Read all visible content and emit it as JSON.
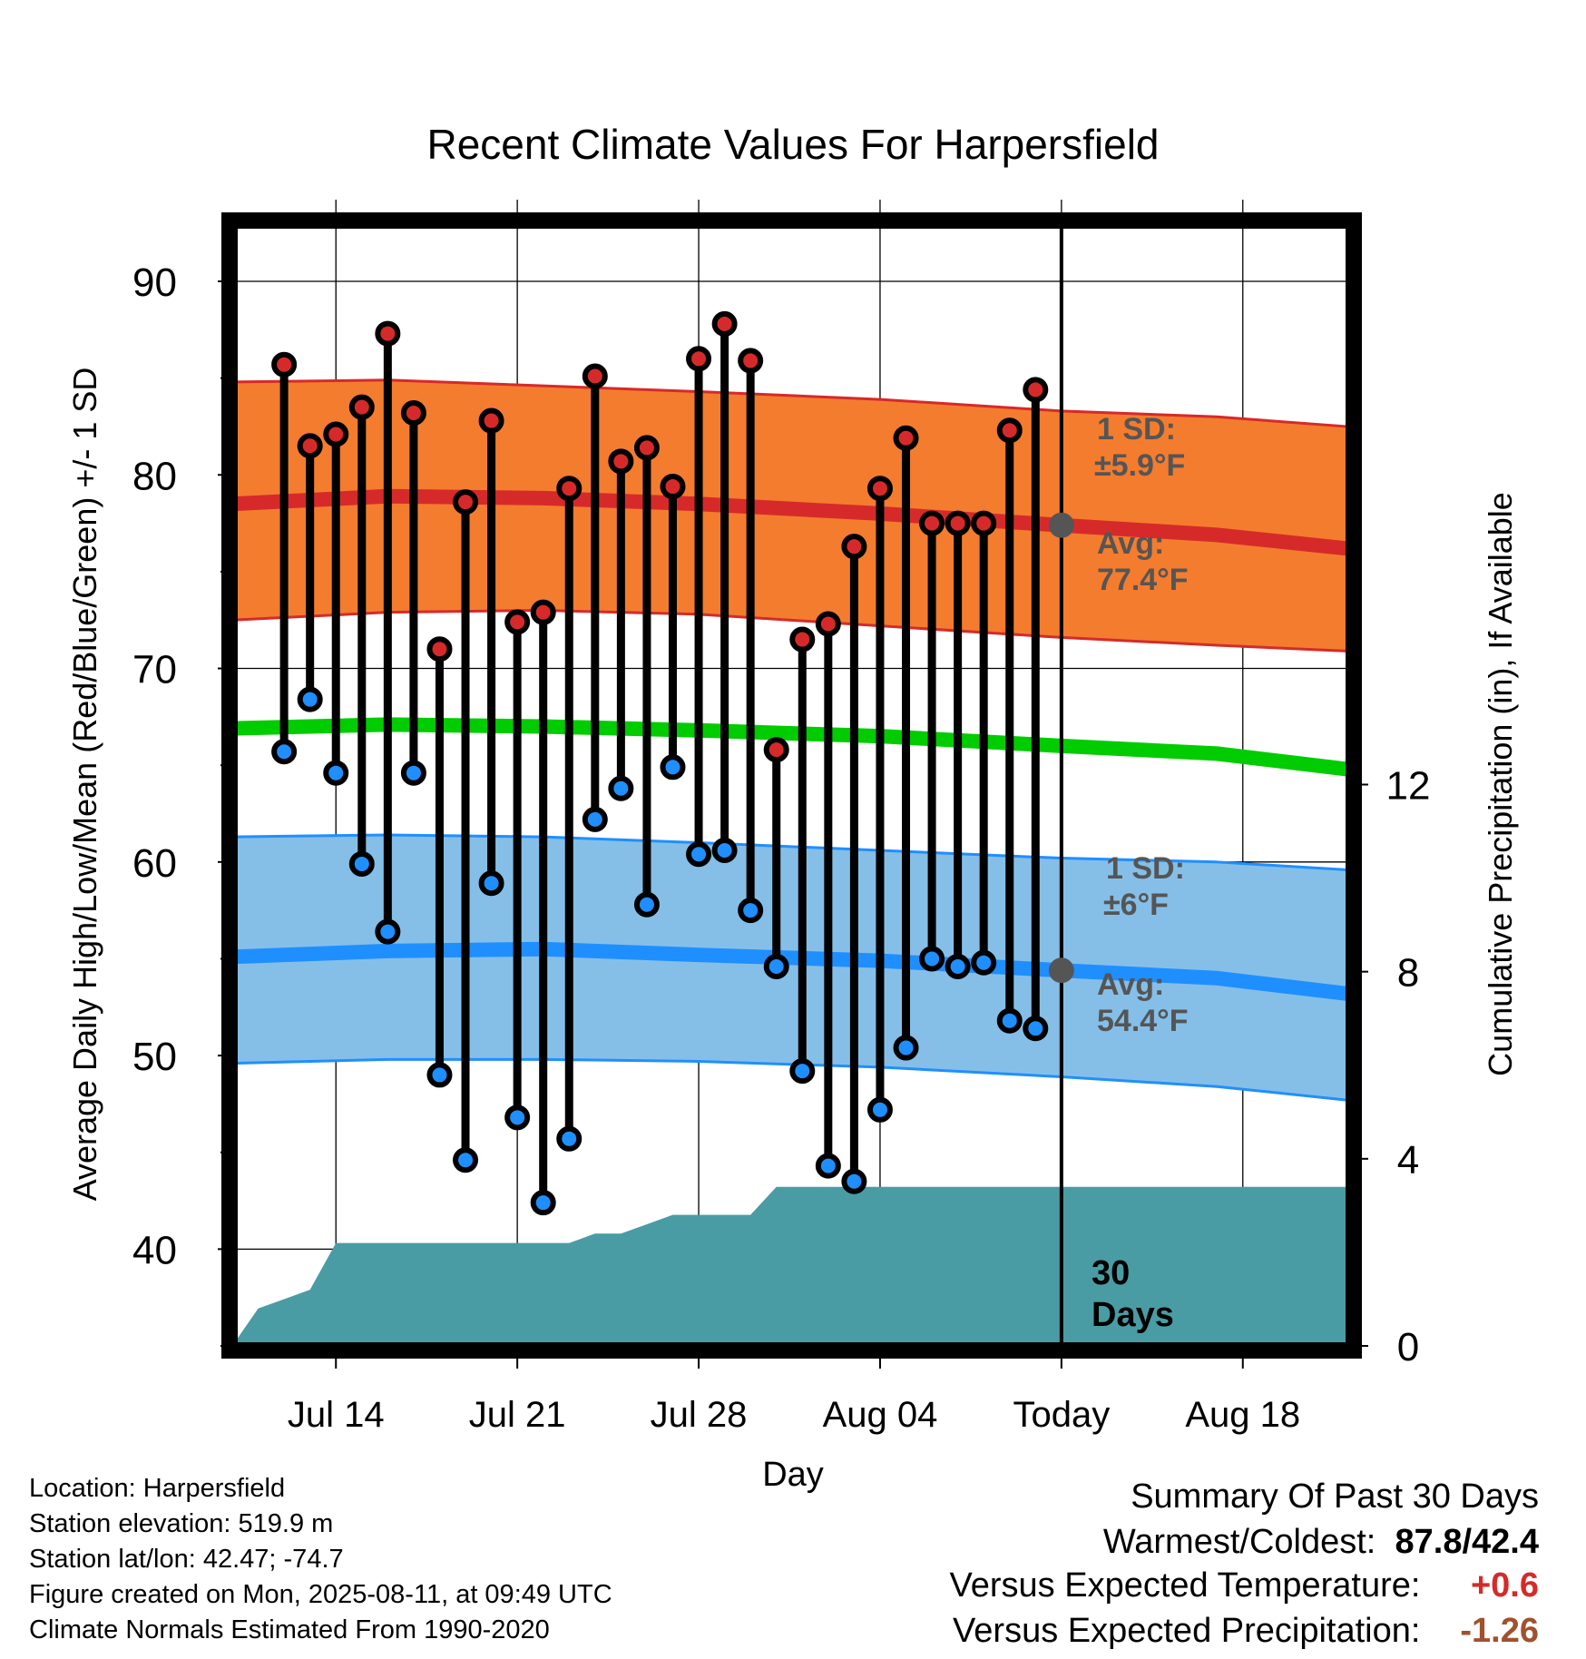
{
  "chart_data": {
    "type": "line",
    "title": "Recent Climate Values For Harpersfield",
    "xlabel": "Day",
    "ylabel": "Average Daily High/Low/Mean (Red/Blue/Green) +/- 1 SD",
    "y2label": "Cumulative Precipitation (in), If Available",
    "xlim": [
      "2025-07-10",
      "2025-08-22"
    ],
    "ylim": [
      35,
      93
    ],
    "y2lim": [
      0,
      24
    ],
    "grid": true,
    "x_ticks": [
      {
        "date": "2025-07-14",
        "label": "Jul 14"
      },
      {
        "date": "2025-07-21",
        "label": "Jul 21"
      },
      {
        "date": "2025-07-28",
        "label": "Jul 28"
      },
      {
        "date": "2025-08-04",
        "label": "Aug 04"
      },
      {
        "date": "2025-08-11",
        "label": "Today"
      },
      {
        "date": "2025-08-18",
        "label": "Aug 18"
      }
    ],
    "y_ticks": [
      "40",
      "50",
      "60",
      "70",
      "80",
      "90"
    ],
    "y2_ticks": [
      "0",
      "4",
      "8",
      "12"
    ],
    "today": "2025-08-11",
    "dates": [
      "2025-07-12",
      "2025-07-13",
      "2025-07-14",
      "2025-07-15",
      "2025-07-16",
      "2025-07-17",
      "2025-07-18",
      "2025-07-19",
      "2025-07-20",
      "2025-07-21",
      "2025-07-22",
      "2025-07-23",
      "2025-07-24",
      "2025-07-25",
      "2025-07-26",
      "2025-07-27",
      "2025-07-28",
      "2025-07-29",
      "2025-07-30",
      "2025-07-31",
      "2025-08-01",
      "2025-08-02",
      "2025-08-03",
      "2025-08-04",
      "2025-08-05",
      "2025-08-06",
      "2025-08-07",
      "2025-08-08",
      "2025-08-09",
      "2025-08-10"
    ],
    "series": [
      {
        "name": "High",
        "color": "#d62a2a",
        "values": [
          85.7,
          81.5,
          82.1,
          83.5,
          87.3,
          83.2,
          71.0,
          78.6,
          82.8,
          72.4,
          72.9,
          79.3,
          85.1,
          80.7,
          81.4,
          79.4,
          86.0,
          87.8,
          85.9,
          65.8,
          71.5,
          72.3,
          76.3,
          79.3,
          81.9,
          77.5,
          77.5,
          77.5,
          82.3,
          84.4
        ]
      },
      {
        "name": "Low",
        "color": "#1f8fff",
        "values": [
          65.7,
          68.4,
          64.6,
          59.9,
          56.4,
          64.6,
          49.0,
          44.6,
          58.9,
          46.8,
          42.4,
          45.7,
          62.2,
          63.8,
          57.8,
          64.9,
          60.4,
          60.6,
          57.5,
          54.6,
          49.2,
          44.3,
          43.5,
          47.2,
          50.4,
          55.0,
          54.6,
          54.8,
          51.8,
          51.4
        ]
      }
    ],
    "normals": {
      "dates": [
        "2025-07-10",
        "2025-07-16",
        "2025-07-22",
        "2025-07-28",
        "2025-08-04",
        "2025-08-11",
        "2025-08-17",
        "2025-08-22"
      ],
      "high_avg": [
        78.5,
        78.9,
        78.8,
        78.5,
        78.0,
        77.4,
        76.9,
        76.2
      ],
      "high_sd_upper": [
        84.8,
        84.9,
        84.6,
        84.3,
        83.9,
        83.3,
        83.0,
        82.5
      ],
      "high_sd_lower": [
        72.5,
        72.9,
        73.0,
        72.8,
        72.2,
        71.6,
        71.2,
        70.9
      ],
      "mean": [
        66.9,
        67.1,
        67.0,
        66.8,
        66.5,
        66.0,
        65.6,
        64.8
      ],
      "low_avg": [
        55.1,
        55.4,
        55.5,
        55.2,
        54.9,
        54.4,
        54.0,
        53.2
      ],
      "low_sd_upper": [
        61.3,
        61.4,
        61.3,
        61.0,
        60.6,
        60.2,
        60.0,
        59.6
      ],
      "low_sd_lower": [
        49.6,
        49.8,
        49.8,
        49.7,
        49.4,
        48.9,
        48.4,
        47.7
      ],
      "high_color": "#d62a2a",
      "high_band_color": "#f47c2e",
      "mean_color": "#00cc00",
      "low_color": "#1f8fff",
      "low_band_color": "#85bfe8"
    },
    "precip": {
      "color": "#4a9ca4",
      "dates": [
        "2025-07-10",
        "2025-07-11",
        "2025-07-12",
        "2025-07-13",
        "2025-07-14",
        "2025-07-23",
        "2025-07-24",
        "2025-07-25",
        "2025-07-26",
        "2025-07-27",
        "2025-07-30",
        "2025-07-31",
        "2025-08-22"
      ],
      "values": [
        0.0,
        0.8,
        1.0,
        1.2,
        2.2,
        2.2,
        2.4,
        2.4,
        2.6,
        2.8,
        2.8,
        3.4,
        3.4
      ]
    },
    "annotations": {
      "high_sd_label": "1 SD:",
      "high_sd_value": "±5.9°F",
      "high_avg_label": "Avg:",
      "high_avg_value": "77.4°F",
      "low_sd_label": "1 SD:",
      "low_sd_value": "±6°F",
      "low_avg_label": "Avg:",
      "low_avg_value": "54.4°F",
      "days_count": "30",
      "days_word": "Days"
    }
  },
  "meta": {
    "location": "Location: Harpersfield",
    "elevation": "Station elevation: 519.9 m",
    "latlon": "Station lat/lon: 42.47; -74.7",
    "created": "Figure created on Mon, 2025-08-11, at 09:49 UTC",
    "normals": "Climate Normals Estimated From 1990-2020"
  },
  "summary": {
    "title": "Summary Of Past 30 Days",
    "warm_cold_label": "Warmest/Coldest:",
    "warmest": "87.8",
    "separator": "/",
    "coldest": "42.4",
    "temp_label": "Versus Expected Temperature:",
    "temp_value": "+0.6",
    "temp_color": "#d62a2a",
    "precip_label": "Versus Expected Precipitation:",
    "precip_value": "-1.26",
    "precip_color": "#a0522d"
  }
}
